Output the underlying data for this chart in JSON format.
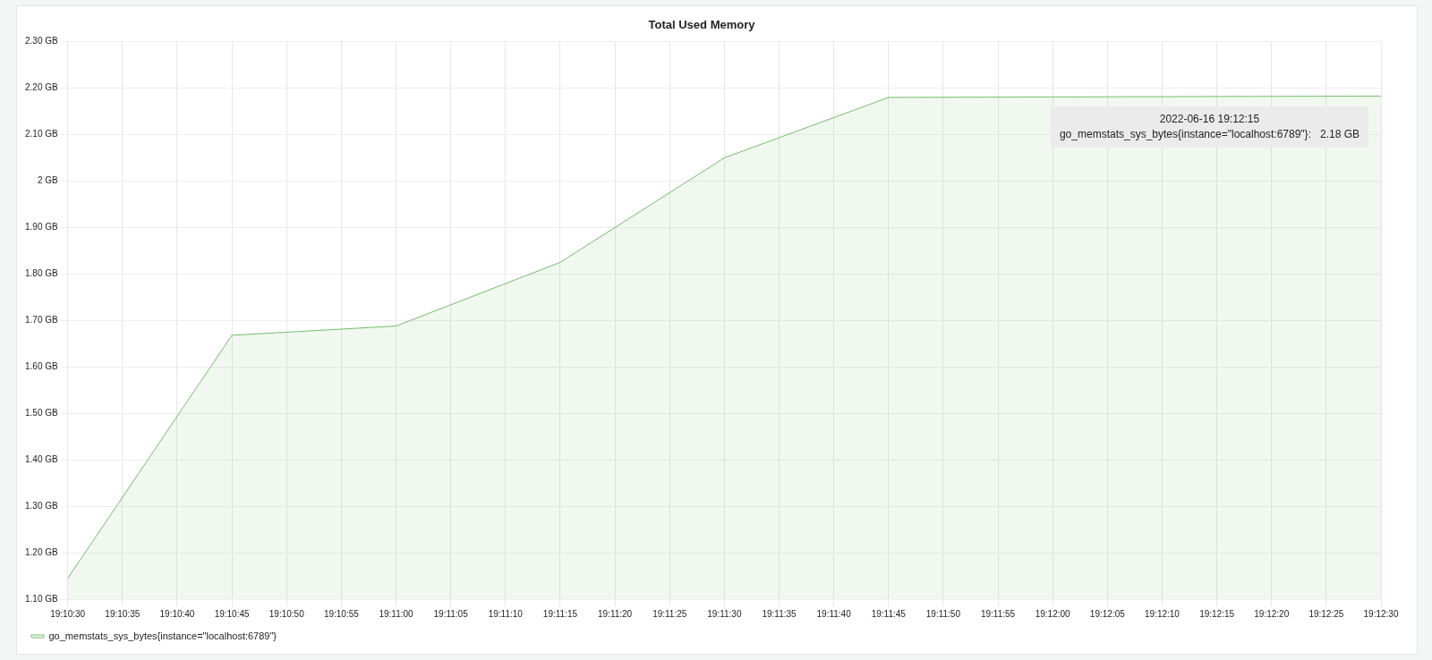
{
  "chart_data": {
    "type": "area",
    "title": "Total Used Memory",
    "x": [
      19.175,
      19.179167,
      19.183333,
      19.1875,
      19.191667,
      19.195833,
      19.2,
      19.204167,
      19.208333
    ],
    "series": [
      {
        "name": "go_memstats_sys_bytes{instance=\"localhost:6789\"}",
        "color": "#73bf69",
        "values": [
          1.145,
          1.668,
          1.688,
          1.825,
          2.05,
          2.18,
          2.181,
          2.182,
          2.183
        ]
      }
    ],
    "xlim": [
      19.175,
      19.208333
    ],
    "xticks": [
      {
        "value": 19.175,
        "label": "19:10:30"
      },
      {
        "value": 19.176389,
        "label": "19:10:35"
      },
      {
        "value": 19.177778,
        "label": "19:10:40"
      },
      {
        "value": 19.179167,
        "label": "19:10:45"
      },
      {
        "value": 19.180556,
        "label": "19:10:50"
      },
      {
        "value": 19.181944,
        "label": "19:10:55"
      },
      {
        "value": 19.183333,
        "label": "19:11:00"
      },
      {
        "value": 19.184722,
        "label": "19:11:05"
      },
      {
        "value": 19.186111,
        "label": "19:11:10"
      },
      {
        "value": 19.1875,
        "label": "19:11:15"
      },
      {
        "value": 19.188889,
        "label": "19:11:20"
      },
      {
        "value": 19.190278,
        "label": "19:11:25"
      },
      {
        "value": 19.191667,
        "label": "19:11:30"
      },
      {
        "value": 19.193056,
        "label": "19:11:35"
      },
      {
        "value": 19.194444,
        "label": "19:11:40"
      },
      {
        "value": 19.195833,
        "label": "19:11:45"
      },
      {
        "value": 19.197222,
        "label": "19:11:50"
      },
      {
        "value": 19.198611,
        "label": "19:11:55"
      },
      {
        "value": 19.2,
        "label": "19:12:00"
      },
      {
        "value": 19.201389,
        "label": "19:12:05"
      },
      {
        "value": 19.202778,
        "label": "19:12:10"
      },
      {
        "value": 19.204167,
        "label": "19:12:15"
      },
      {
        "value": 19.205556,
        "label": "19:12:20"
      },
      {
        "value": 19.206944,
        "label": "19:12:25"
      },
      {
        "value": 19.208333,
        "label": "19:12:30"
      }
    ],
    "ylim": [
      1.1,
      2.3
    ],
    "yticks": [
      {
        "value": 1.1,
        "label": "1.10 GB"
      },
      {
        "value": 1.2,
        "label": "1.20 GB"
      },
      {
        "value": 1.3,
        "label": "1.30 GB"
      },
      {
        "value": 1.4,
        "label": "1.40 GB"
      },
      {
        "value": 1.5,
        "label": "1.50 GB"
      },
      {
        "value": 1.6,
        "label": "1.60 GB"
      },
      {
        "value": 1.7,
        "label": "1.70 GB"
      },
      {
        "value": 1.8,
        "label": "1.80 GB"
      },
      {
        "value": 1.9,
        "label": "1.90 GB"
      },
      {
        "value": 2,
        "label": "2 GB"
      },
      {
        "value": 2.1,
        "label": "2.10 GB"
      },
      {
        "value": 2.2,
        "label": "2.20 GB"
      },
      {
        "value": 2.3,
        "label": "2.30 GB"
      }
    ],
    "annotations": [
      "2022-06-16 19:12:15",
      "go_memstats_sys_bytes{instance=\"localhost:6789\"}:   2.18 GB"
    ],
    "grid": true,
    "legend": "bottom left",
    "marker": "none",
    "line_style": "solid"
  }
}
